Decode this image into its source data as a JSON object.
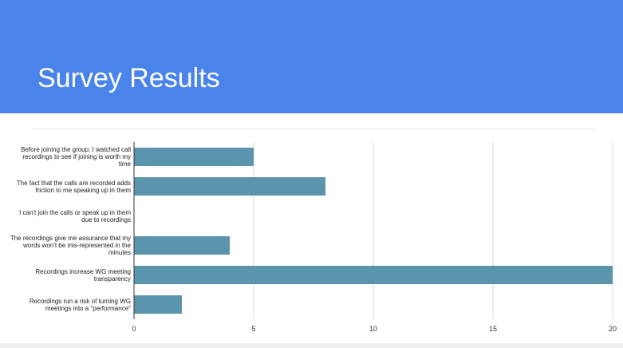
{
  "slide": {
    "title": "Survey Results"
  },
  "colors": {
    "header": "#4a84eb",
    "bar": "#5b94ad",
    "grid": "#d9d9d9",
    "axis": "#333333"
  },
  "chart_data": {
    "type": "bar",
    "orientation": "horizontal",
    "categories": [
      "Before joining the group, I watched call recordings to see if joining is worth my time",
      "The fact that the calls are recorded adds friction to me speaking up in them",
      "I can't join the calls or speak up in them due to recordings",
      "The recordings give me assurance that my words won't be mis-represented in the minutes",
      "Recordings increase WG meeting transparency",
      "Recordings run a risk of turning WG meetings into a \"performance\""
    ],
    "values": [
      5,
      8,
      0,
      4,
      20,
      2
    ],
    "xlim": [
      0,
      20
    ],
    "xticks": [
      "0",
      "5",
      "10",
      "15",
      "20"
    ],
    "grid": true,
    "legend": false
  }
}
